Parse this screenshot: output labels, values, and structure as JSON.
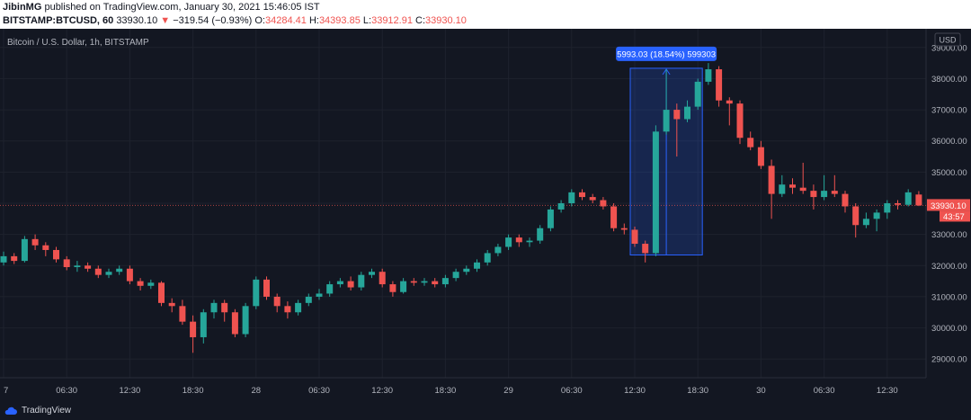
{
  "header": {
    "author": "JibinMG",
    "published_text": "published on TradingView.com, January 30, 2021 15:46:05 IST",
    "symbol": "BITSTAMP:BTCUSD, 60",
    "last_price": "33930.10",
    "change": "−319.54 (−0.93%)",
    "open_label": "O:",
    "open": "34284.41",
    "high_label": "H:",
    "high": "34393.85",
    "low_label": "L:",
    "low": "33912.91",
    "close_label": "C:",
    "close": "33930.10"
  },
  "footer": {
    "brand": "TradingView"
  },
  "colors": {
    "up": "#26a69a",
    "down": "#ef5350",
    "bg": "#131722",
    "grid": "#1e222d",
    "price_tag": "#ef5350",
    "measure": "#2962ff"
  },
  "chart_data": {
    "type": "candlestick",
    "title": "Bitcoin / U.S. Dollar, 1h, BITSTAMP",
    "currency": "USD",
    "ylim": [
      28400,
      39600
    ],
    "y_ticks": [
      29000,
      30000,
      31000,
      32000,
      33000,
      34000,
      35000,
      36000,
      37000,
      38000,
      39000
    ],
    "y_tick_labels": [
      "29000.00",
      "30000.00",
      "31000.00",
      "32000.00",
      "33000.00",
      "34000.00",
      "35000.00",
      "36000.00",
      "37000.00",
      "38000.00",
      "39000.00"
    ],
    "x_labels": [
      {
        "i": 0,
        "text": "7"
      },
      {
        "i": 6,
        "text": "06:30"
      },
      {
        "i": 12,
        "text": "12:30"
      },
      {
        "i": 18,
        "text": "18:30"
      },
      {
        "i": 24,
        "text": "28"
      },
      {
        "i": 30,
        "text": "06:30"
      },
      {
        "i": 36,
        "text": "12:30"
      },
      {
        "i": 42,
        "text": "18:30"
      },
      {
        "i": 48,
        "text": "29"
      },
      {
        "i": 54,
        "text": "06:30"
      },
      {
        "i": 60,
        "text": "12:30"
      },
      {
        "i": 66,
        "text": "18:30"
      },
      {
        "i": 72,
        "text": "30"
      },
      {
        "i": 78,
        "text": "06:30"
      },
      {
        "i": 84,
        "text": "12:30"
      }
    ],
    "last_price_label": "33930.10",
    "countdown": "43:57",
    "last_price": 33930.1,
    "measure": {
      "label": "5993.03 (18.54%) 599303",
      "from_index": 60,
      "to_index": 66,
      "low": 32340,
      "high": 38333
    },
    "candles": [
      [
        32100,
        32300,
        32450,
        32000
      ],
      [
        32300,
        32150,
        32400,
        32050
      ],
      [
        32150,
        32850,
        32950,
        32100
      ],
      [
        32850,
        32650,
        33000,
        32500
      ],
      [
        32650,
        32500,
        32750,
        32300
      ],
      [
        32500,
        32200,
        32600,
        32100
      ],
      [
        32200,
        31950,
        32300,
        31850
      ],
      [
        31950,
        32000,
        32150,
        31800
      ],
      [
        32000,
        31900,
        32100,
        31800
      ],
      [
        31900,
        31700,
        32000,
        31600
      ],
      [
        31700,
        31800,
        31900,
        31600
      ],
      [
        31800,
        31900,
        32000,
        31700
      ],
      [
        31900,
        31500,
        32000,
        31400
      ],
      [
        31500,
        31350,
        31600,
        31200
      ],
      [
        31350,
        31450,
        31550,
        31250
      ],
      [
        31450,
        30800,
        31500,
        30700
      ],
      [
        30800,
        30700,
        30950,
        30500
      ],
      [
        30700,
        30200,
        30900,
        30100
      ],
      [
        30200,
        29700,
        30400,
        29200
      ],
      [
        29700,
        30500,
        30600,
        29500
      ],
      [
        30500,
        30800,
        30900,
        30300
      ],
      [
        30800,
        30500,
        30900,
        30200
      ],
      [
        30500,
        29800,
        30600,
        29700
      ],
      [
        29800,
        30700,
        30800,
        29700
      ],
      [
        30700,
        31550,
        31650,
        30600
      ],
      [
        31550,
        31000,
        31650,
        30900
      ],
      [
        31000,
        30700,
        31100,
        30500
      ],
      [
        30700,
        30500,
        30850,
        30300
      ],
      [
        30500,
        30800,
        30900,
        30400
      ],
      [
        30800,
        31000,
        31100,
        30700
      ],
      [
        31000,
        31100,
        31250,
        30900
      ],
      [
        31100,
        31400,
        31500,
        31000
      ],
      [
        31400,
        31500,
        31600,
        31300
      ],
      [
        31500,
        31300,
        31650,
        31200
      ],
      [
        31300,
        31700,
        31800,
        31200
      ],
      [
        31700,
        31800,
        31900,
        31600
      ],
      [
        31800,
        31400,
        31900,
        31300
      ],
      [
        31400,
        31150,
        31500,
        31000
      ],
      [
        31150,
        31500,
        31600,
        31100
      ],
      [
        31500,
        31450,
        31600,
        31350
      ],
      [
        31450,
        31500,
        31600,
        31350
      ],
      [
        31500,
        31400,
        31600,
        31300
      ],
      [
        31400,
        31600,
        31700,
        31300
      ],
      [
        31600,
        31800,
        31900,
        31500
      ],
      [
        31800,
        31900,
        32000,
        31700
      ],
      [
        31900,
        32100,
        32200,
        31800
      ],
      [
        32100,
        32400,
        32500,
        32000
      ],
      [
        32400,
        32600,
        32700,
        32300
      ],
      [
        32600,
        32900,
        33000,
        32500
      ],
      [
        32900,
        32750,
        33000,
        32600
      ],
      [
        32750,
        32800,
        32900,
        32600
      ],
      [
        32800,
        33200,
        33300,
        32700
      ],
      [
        33200,
        33800,
        33900,
        33100
      ],
      [
        33800,
        34000,
        34100,
        33700
      ],
      [
        34000,
        34350,
        34450,
        33900
      ],
      [
        34350,
        34200,
        34450,
        34100
      ],
      [
        34200,
        34100,
        34300,
        34000
      ],
      [
        34100,
        33900,
        34200,
        33800
      ],
      [
        33900,
        33200,
        34000,
        33100
      ],
      [
        33200,
        33150,
        33350,
        33000
      ],
      [
        33150,
        32700,
        33250,
        32600
      ],
      [
        32700,
        32400,
        32800,
        32100
      ],
      [
        32400,
        36300,
        36500,
        32300
      ],
      [
        36300,
        37000,
        38300,
        36200
      ],
      [
        37000,
        36700,
        37200,
        35500
      ],
      [
        36700,
        37100,
        37300,
        36600
      ],
      [
        37100,
        37900,
        38000,
        37000
      ],
      [
        37900,
        38300,
        38500,
        37800
      ],
      [
        38300,
        37300,
        38400,
        37100
      ],
      [
        37300,
        37200,
        37400,
        36500
      ],
      [
        37200,
        36100,
        37300,
        35900
      ],
      [
        36100,
        35800,
        36300,
        35700
      ],
      [
        35800,
        35200,
        36000,
        35100
      ],
      [
        35200,
        34300,
        35400,
        33500
      ],
      [
        34300,
        34600,
        34900,
        34200
      ],
      [
        34600,
        34500,
        34800,
        34300
      ],
      [
        34500,
        34400,
        35300,
        34300
      ],
      [
        34400,
        34200,
        34600,
        33800
      ],
      [
        34200,
        34400,
        34900,
        34100
      ],
      [
        34400,
        34300,
        34900,
        34200
      ],
      [
        34300,
        33900,
        34400,
        33700
      ],
      [
        33900,
        33300,
        34000,
        32900
      ],
      [
        33300,
        33500,
        33700,
        33200
      ],
      [
        33500,
        33700,
        33800,
        33100
      ],
      [
        33700,
        34000,
        34100,
        33500
      ],
      [
        34000,
        33950,
        34100,
        33800
      ],
      [
        33950,
        34350,
        34450,
        33900
      ],
      [
        34280,
        33930,
        34390,
        33910
      ]
    ]
  }
}
